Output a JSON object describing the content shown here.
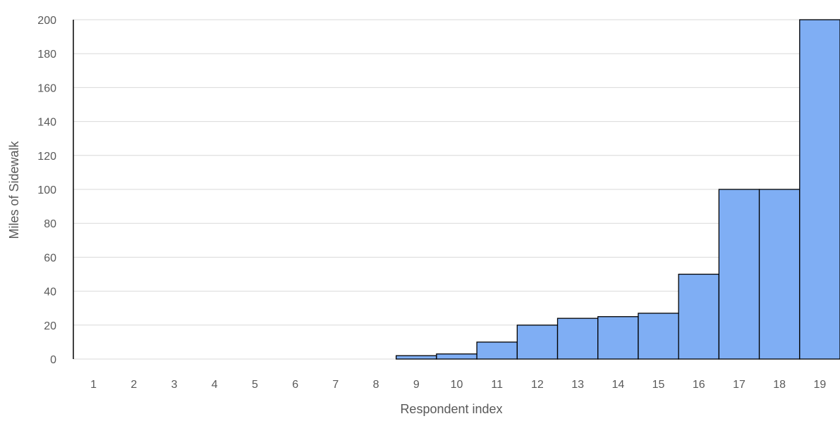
{
  "chart_data": {
    "type": "bar",
    "title": "",
    "xlabel": "Respondent index",
    "ylabel": "Miles of Sidewalk",
    "categories": [
      "1",
      "2",
      "3",
      "4",
      "5",
      "6",
      "7",
      "8",
      "9",
      "10",
      "11",
      "12",
      "13",
      "14",
      "15",
      "16",
      "17",
      "18",
      "19"
    ],
    "values": [
      0,
      0,
      0,
      0,
      0,
      0,
      0,
      0,
      2,
      3,
      10,
      20,
      24,
      25,
      27,
      50,
      100,
      100,
      200
    ],
    "ylim": [
      0,
      200
    ],
    "yticks": [
      "0",
      "20",
      "40",
      "60",
      "80",
      "100",
      "120",
      "140",
      "160",
      "180",
      "200"
    ],
    "grid": true,
    "legend": "none",
    "colors": {
      "bar_fill": "#7faef4",
      "bar_stroke": "#000000",
      "gridline": "#d9d9d9",
      "axis_line": "#000000",
      "text": "#595959"
    }
  }
}
